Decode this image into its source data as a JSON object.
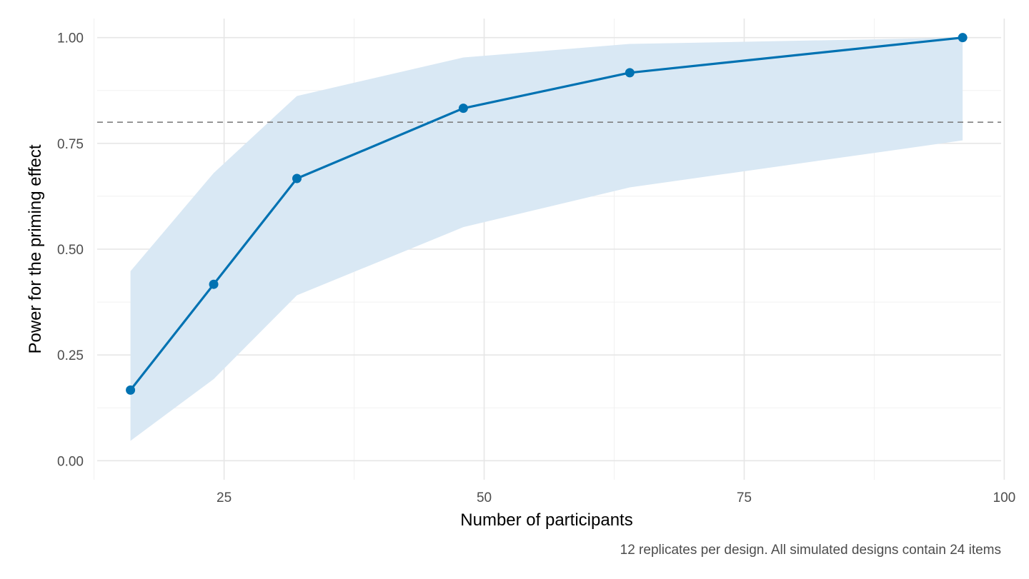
{
  "chart_data": {
    "type": "line",
    "xlabel": "Number of participants",
    "ylabel": "Power for the priming effect",
    "caption": "12 replicates per design. All simulated designs contain 24 items",
    "xlim": [
      12.8,
      99.7
    ],
    "ylim": [
      -0.045,
      1.045
    ],
    "x_ticks": [
      {
        "value": 25,
        "label": "25"
      },
      {
        "value": 50,
        "label": "50"
      },
      {
        "value": 75,
        "label": "75"
      },
      {
        "value": 100,
        "label": "100"
      }
    ],
    "x_minor_ticks": [
      12.5,
      37.5,
      62.5,
      87.5
    ],
    "y_ticks": [
      {
        "value": 0.0,
        "label": "0.00"
      },
      {
        "value": 0.25,
        "label": "0.25"
      },
      {
        "value": 0.5,
        "label": "0.50"
      },
      {
        "value": 0.75,
        "label": "0.75"
      },
      {
        "value": 1.0,
        "label": "1.00"
      }
    ],
    "y_minor_ticks": [
      0.125,
      0.375,
      0.625,
      0.875
    ],
    "reference_line": {
      "y": 0.8,
      "style": "dashed",
      "color": "#808080"
    },
    "grid": true,
    "legend": "none",
    "series": [
      {
        "x": [
          16,
          24,
          32,
          48,
          64,
          96
        ],
        "y": [
          0.167,
          0.417,
          0.667,
          0.833,
          0.917,
          1.0
        ],
        "ci_lower": [
          0.047,
          0.193,
          0.391,
          0.552,
          0.646,
          0.757
        ],
        "ci_upper": [
          0.448,
          0.68,
          0.862,
          0.953,
          0.985,
          1.0
        ],
        "color": "#0072B2",
        "ribbon_color": "#d9e8f4"
      }
    ]
  }
}
